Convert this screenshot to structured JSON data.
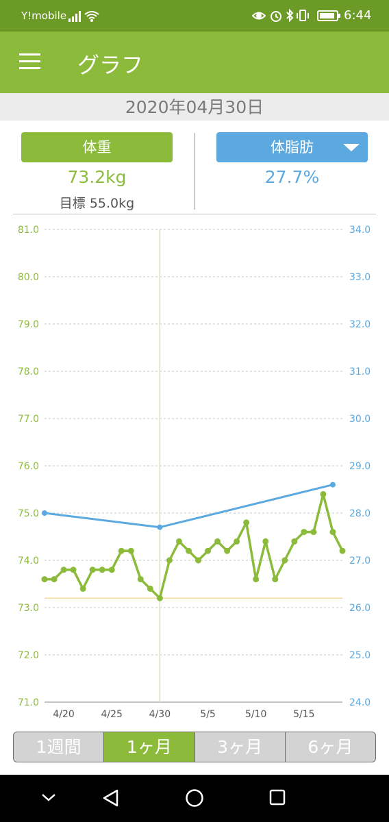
{
  "status_bar": {
    "carrier": "Y!mobile",
    "time": "6:44",
    "icons": [
      "signal-icon",
      "wifi-icon",
      "eye-icon",
      "alarm-icon",
      "bluetooth-icon",
      "vibrate-icon",
      "battery-icon"
    ]
  },
  "app_bar": {
    "title": "グラフ",
    "menu_icon": "hamburger-menu-icon"
  },
  "date": "2020年04月30日",
  "weight": {
    "label": "体重",
    "value": "73.2kg",
    "goal": "目標 55.0kg"
  },
  "body_fat": {
    "label": "体脂肪",
    "value": "27.7%"
  },
  "periods": [
    "1週間",
    "1ヶ月",
    "3ヶ月",
    "6ヶ月"
  ],
  "active_period": "1ヶ月",
  "colors": {
    "weight": "#8cbb3c",
    "body_fat": "#5ba9df",
    "app_bar": "#8cbb3c",
    "status_bar": "#6c9a26",
    "goal_line": "#f0dd9a",
    "selected_line": "#dfe0a3"
  },
  "nav_icons": [
    "chevron-down-icon",
    "back-icon",
    "home-icon",
    "recents-icon"
  ],
  "chart_data": {
    "type": "line",
    "title": "",
    "x_tick_labels": [
      "4/20",
      "4/25",
      "4/30",
      "5/5",
      "5/10",
      "5/15"
    ],
    "left_axis": {
      "ylim": [
        71.0,
        81.0
      ],
      "ticks": [
        "71.0",
        "72.0",
        "73.0",
        "74.0",
        "75.0",
        "76.0",
        "77.0",
        "78.0",
        "79.0",
        "80.0",
        "81.0"
      ]
    },
    "right_axis": {
      "ylim": [
        24.0,
        34.0
      ],
      "ticks": [
        "24.0",
        "25.0",
        "26.0",
        "27.0",
        "28.0",
        "29.0",
        "30.0",
        "31.0",
        "32.0",
        "33.0",
        "34.0"
      ]
    },
    "grid": true,
    "selected_date": "4/30",
    "goal_line_value": 73.2,
    "series": [
      {
        "axis": "left",
        "points": [
          {
            "x": "4/18",
            "y": 73.6
          },
          {
            "x": "4/19",
            "y": 73.6
          },
          {
            "x": "4/20",
            "y": 73.8
          },
          {
            "x": "4/21",
            "y": 73.8
          },
          {
            "x": "4/22",
            "y": 73.4
          },
          {
            "x": "4/23",
            "y": 73.8
          },
          {
            "x": "4/24",
            "y": 73.8
          },
          {
            "x": "4/25",
            "y": 73.8
          },
          {
            "x": "4/26",
            "y": 74.2
          },
          {
            "x": "4/27",
            "y": 74.2
          },
          {
            "x": "4/28",
            "y": 73.6
          },
          {
            "x": "4/29",
            "y": 73.4
          },
          {
            "x": "4/30",
            "y": 73.2
          },
          {
            "x": "5/1",
            "y": 74.0
          },
          {
            "x": "5/2",
            "y": 74.4
          },
          {
            "x": "5/3",
            "y": 74.2
          },
          {
            "x": "5/4",
            "y": 74.0
          },
          {
            "x": "5/5",
            "y": 74.2
          },
          {
            "x": "5/6",
            "y": 74.4
          },
          {
            "x": "5/7",
            "y": 74.2
          },
          {
            "x": "5/8",
            "y": 74.4
          },
          {
            "x": "5/9",
            "y": 74.8
          },
          {
            "x": "5/10",
            "y": 73.6
          },
          {
            "x": "5/11",
            "y": 74.4
          },
          {
            "x": "5/12",
            "y": 73.6
          },
          {
            "x": "5/13",
            "y": 74.0
          },
          {
            "x": "5/14",
            "y": 74.4
          },
          {
            "x": "5/15",
            "y": 74.6
          },
          {
            "x": "5/16",
            "y": 74.6
          },
          {
            "x": "5/17",
            "y": 75.4
          },
          {
            "x": "5/18",
            "y": 74.6
          },
          {
            "x": "5/19",
            "y": 74.2
          }
        ]
      },
      {
        "axis": "right",
        "points": [
          {
            "x": "4/18",
            "y": 28.0
          },
          {
            "x": "4/30",
            "y": 27.7
          },
          {
            "x": "5/18",
            "y": 28.6
          }
        ]
      }
    ]
  }
}
